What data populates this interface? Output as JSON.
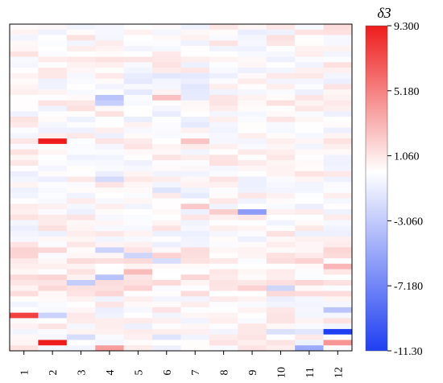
{
  "chart_data": {
    "type": "heatmap",
    "title": "",
    "xlabel": "",
    "ylabel": "",
    "x_categories": [
      "1",
      "2",
      "3",
      "4",
      "5",
      "6",
      "7",
      "8",
      "9",
      "10",
      "11",
      "12"
    ],
    "n_rows": 60,
    "colorbar": {
      "label": "δ3",
      "min": -11.3,
      "max": 9.3,
      "center": 0,
      "ticks": [
        9.3,
        5.18,
        1.06,
        -3.06,
        -7.18,
        -11.3
      ],
      "tick_labels": [
        "9.300",
        "5.180",
        "1.060",
        "-3.060",
        "-7.180",
        "-11.30"
      ],
      "color_low": "#1f3ff2",
      "color_mid": "#ffffff",
      "color_high": "#ee1c1c"
    },
    "sparse_values": [
      {
        "row": 0,
        "col": 9,
        "value": 1.0
      },
      {
        "row": 0,
        "col": 11,
        "value": 1.4
      },
      {
        "row": 1,
        "col": 8,
        "value": -1.0
      },
      {
        "row": 13,
        "col": 3,
        "value": -3.5
      },
      {
        "row": 14,
        "col": 3,
        "value": -2.8
      },
      {
        "row": 13,
        "col": 5,
        "value": 2.6
      },
      {
        "row": 21,
        "col": 1,
        "value": 9.3
      },
      {
        "row": 21,
        "col": 6,
        "value": 2.4
      },
      {
        "row": 28,
        "col": 3,
        "value": -2.2
      },
      {
        "row": 30,
        "col": 5,
        "value": -1.6
      },
      {
        "row": 31,
        "col": 6,
        "value": -1.2
      },
      {
        "row": 34,
        "col": 8,
        "value": -5.8
      },
      {
        "row": 34,
        "col": 7,
        "value": 2.0
      },
      {
        "row": 33,
        "col": 6,
        "value": 2.2
      },
      {
        "row": 41,
        "col": 3,
        "value": -2.6
      },
      {
        "row": 42,
        "col": 4,
        "value": -2.4
      },
      {
        "row": 43,
        "col": 5,
        "value": -2.0
      },
      {
        "row": 46,
        "col": 3,
        "value": -3.6
      },
      {
        "row": 47,
        "col": 2,
        "value": -3.0
      },
      {
        "row": 48,
        "col": 9,
        "value": -2.4
      },
      {
        "row": 45,
        "col": 4,
        "value": 2.8
      },
      {
        "row": 44,
        "col": 11,
        "value": 3.0
      },
      {
        "row": 53,
        "col": 0,
        "value": 7.8
      },
      {
        "row": 53,
        "col": 1,
        "value": -2.6
      },
      {
        "row": 52,
        "col": 11,
        "value": -3.4
      },
      {
        "row": 56,
        "col": 11,
        "value": -11.3
      },
      {
        "row": 56,
        "col": 9,
        "value": -1.8
      },
      {
        "row": 56,
        "col": 10,
        "value": -1.4
      },
      {
        "row": 57,
        "col": 2,
        "value": -2.0
      },
      {
        "row": 57,
        "col": 5,
        "value": -1.6
      },
      {
        "row": 58,
        "col": 1,
        "value": 9.3
      },
      {
        "row": 58,
        "col": 11,
        "value": 4.4
      },
      {
        "row": 59,
        "col": 10,
        "value": -5.0
      },
      {
        "row": 59,
        "col": 3,
        "value": 4.0
      }
    ]
  }
}
